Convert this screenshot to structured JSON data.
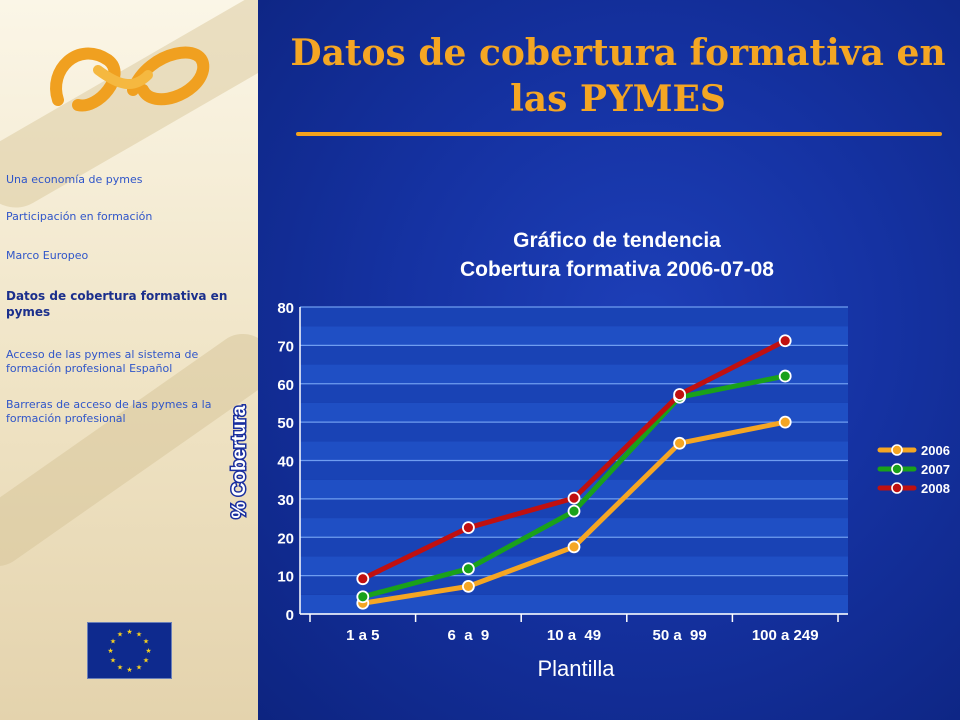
{
  "title": "Datos de cobertura formativa en las PYMES",
  "sidebar": {
    "items": [
      {
        "label": "Una economía de pymes"
      },
      {
        "label": "Participación en formación"
      },
      {
        "label": "Marco Europeo"
      },
      {
        "label": "Datos de cobertura formativa en pymes"
      },
      {
        "label": "Acceso de las pymes al sistema de formación profesional Español"
      },
      {
        "label": "Barreras de acceso de las pymes a la formación profesional"
      }
    ]
  },
  "colors": {
    "title": "#f4a623",
    "s2006": "#f5a623",
    "s2007": "#1aa11a",
    "s2008": "#c01010",
    "background": "#1532a2"
  },
  "chart_data": {
    "type": "line",
    "title": "Gráfico de tendencia",
    "subtitle": "Cobertura formativa 2006-07-08",
    "xlabel": "Plantilla",
    "ylabel": "% Cobertura",
    "categories": [
      "1 a 5",
      "6  a  9",
      "10 a  49",
      "50 a  99",
      "100 a 249"
    ],
    "series": [
      {
        "name": "2006",
        "values": [
          2.8,
          7.2,
          17.5,
          44.5,
          50
        ]
      },
      {
        "name": "2007",
        "values": [
          4.5,
          11.8,
          26.8,
          56.5,
          62
        ]
      },
      {
        "name": "2008",
        "values": [
          9.2,
          22.5,
          30.2,
          57.2,
          71.2
        ]
      }
    ],
    "ylim": [
      0,
      80
    ],
    "yticks": [
      0,
      10,
      20,
      30,
      40,
      50,
      60,
      70,
      80
    ],
    "grid": true,
    "legend": "right"
  }
}
